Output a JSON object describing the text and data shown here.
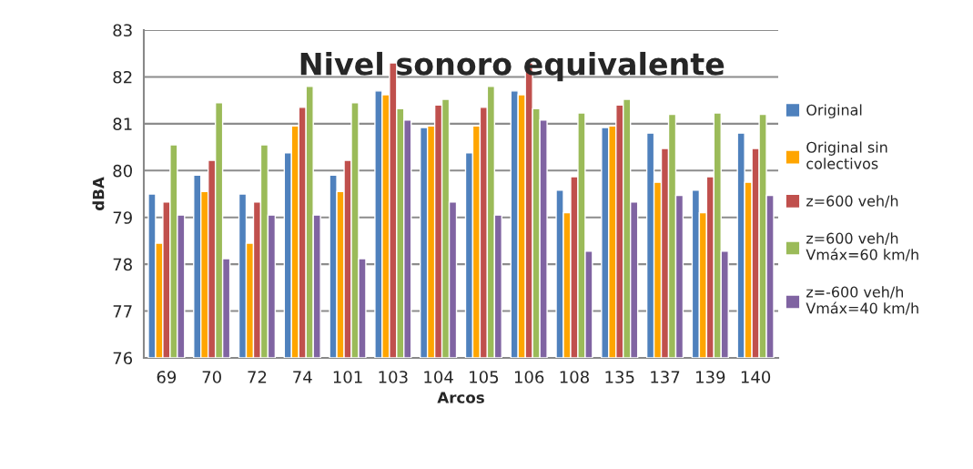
{
  "chart_data": {
    "type": "bar",
    "title": "Nivel sonoro equivalente",
    "xlabel": "Arcos",
    "ylabel": "dBA",
    "categories": [
      "69",
      "70",
      "72",
      "74",
      "101",
      "103",
      "104",
      "105",
      "106",
      "108",
      "135",
      "137",
      "139",
      "140"
    ],
    "series": [
      {
        "name": "Original",
        "color": "#4f81bd",
        "values": [
          79.5,
          79.9,
          79.5,
          80.38,
          79.9,
          81.7,
          80.92,
          80.38,
          81.7,
          79.58,
          80.92,
          80.8,
          79.58,
          80.8
        ]
      },
      {
        "name": "Original sin colectivos",
        "color": "#ffa500",
        "values": [
          78.45,
          79.55,
          78.45,
          80.95,
          79.55,
          81.62,
          80.95,
          80.95,
          81.62,
          79.1,
          80.95,
          79.75,
          79.1,
          79.75
        ]
      },
      {
        "name": "z=600 veh/h",
        "color": "#c0504d",
        "values": [
          79.33,
          80.22,
          79.33,
          81.35,
          80.22,
          82.3,
          81.4,
          81.35,
          82.3,
          79.87,
          81.4,
          80.47,
          79.87,
          80.47
        ]
      },
      {
        "name": "z=600 veh/h Vmáx=60 km/h",
        "color": "#9bbb59",
        "values": [
          80.55,
          81.45,
          80.55,
          81.8,
          81.45,
          81.32,
          81.52,
          81.8,
          81.32,
          81.23,
          81.52,
          81.2,
          81.23,
          81.2
        ]
      },
      {
        "name": "z=-600 veh/h Vmáx=40 km/h",
        "color": "#8064a2",
        "values": [
          79.05,
          78.12,
          79.05,
          79.05,
          78.12,
          81.08,
          79.33,
          79.05,
          81.08,
          78.28,
          79.33,
          79.47,
          78.28,
          79.47
        ]
      }
    ],
    "ylim": [
      76,
      83
    ],
    "yticks": [
      76,
      77,
      78,
      79,
      80,
      81,
      82,
      83
    ],
    "grid": "y",
    "legend": "right"
  }
}
